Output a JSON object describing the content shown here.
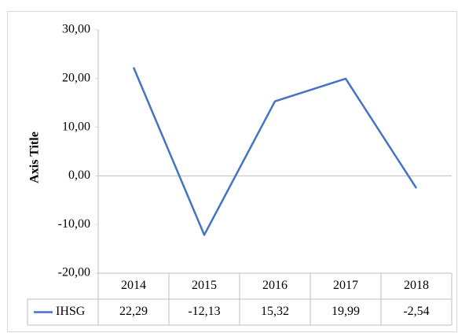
{
  "chart_data": {
    "type": "line",
    "y_axis_title": "Axis Title",
    "categories": [
      "2014",
      "2015",
      "2016",
      "2017",
      "2018"
    ],
    "series": [
      {
        "name": "IHSG",
        "color": "#4472c4",
        "values": [
          22.29,
          -12.13,
          15.32,
          19.99,
          -2.54
        ],
        "value_labels": [
          "22,29",
          "-12,13",
          "15,32",
          "19,99",
          "-2,54"
        ]
      }
    ],
    "ylim": [
      -20,
      30
    ],
    "yticks": [
      {
        "value": -20,
        "label": "-20,00"
      },
      {
        "value": -10,
        "label": "-10,00"
      },
      {
        "value": 0,
        "label": "0,00"
      },
      {
        "value": 10,
        "label": "10,00"
      },
      {
        "value": 20,
        "label": "20,00"
      },
      {
        "value": 30,
        "label": "30,00"
      }
    ],
    "grid": false,
    "data_table": true
  }
}
